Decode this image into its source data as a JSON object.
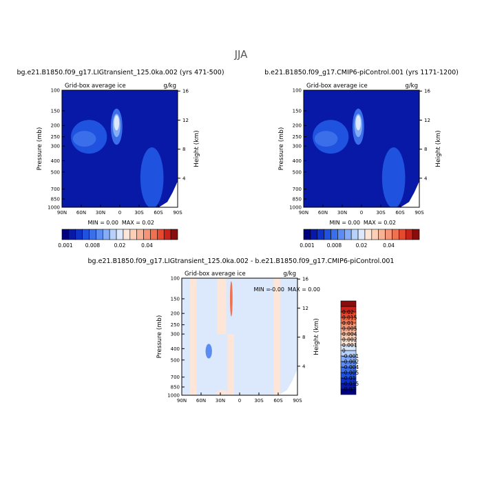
{
  "figure": {
    "title": "JJA"
  },
  "chart_data": [
    {
      "type": "heatmap",
      "title": "bg.e21.B1850.f09_g17.LIGtransient_125.0ka.002 (yrs 471-500)",
      "subtitle_left": "Grid-box average ice",
      "subtitle_right": "g/kg",
      "ylabel": "Pressure (mb)",
      "ylabel_right": "Height (km)",
      "x_ticks": [
        "90N",
        "60N",
        "30N",
        "0",
        "30S",
        "60S",
        "90S"
      ],
      "y_ticks": [
        "100",
        "150",
        "200",
        "250",
        "300",
        "400",
        "500",
        "700",
        "850",
        "1000"
      ],
      "y_right_ticks": [
        "16",
        "12",
        "8",
        "4"
      ],
      "y_right_values": [
        16,
        12,
        8,
        4
      ],
      "x_range": [
        90,
        -90
      ],
      "y_range": [
        1000,
        100
      ],
      "stats": {
        "min_label": "MIN =",
        "min": "0.00",
        "max_label": "MAX =",
        "max": "0.02"
      },
      "colorbar": {
        "orientation": "horizontal",
        "colors": [
          "#00007f",
          "#0819a8",
          "#0e32c8",
          "#1e52df",
          "#3b6fea",
          "#5c8cf2",
          "#84acf7",
          "#b8d1fb",
          "#dce9fd",
          "#fde6d8",
          "#fbd0b6",
          "#f8b396",
          "#f39576",
          "#ee7150",
          "#e54a2e",
          "#c8231b",
          "#8a0d0d"
        ],
        "labels": [
          "0.001",
          "0.008",
          "0.02",
          "0.04"
        ],
        "label_positions": [
          0,
          4,
          8,
          12
        ]
      },
      "features": [
        {
          "kind": "blob",
          "lat": 48,
          "p": 250,
          "rx": 28,
          "rp": 80,
          "color": "#1e52df"
        },
        {
          "kind": "blob",
          "lat": 55,
          "p": 260,
          "rx": 18,
          "rp": 40,
          "color": "#3b6fea"
        },
        {
          "kind": "blob",
          "lat": 5,
          "p": 205,
          "rx": 9,
          "rp": 70,
          "color": "#3b6fea"
        },
        {
          "kind": "blob",
          "lat": 5,
          "p": 200,
          "rx": 6,
          "rp": 45,
          "color": "#84acf7"
        },
        {
          "kind": "blob",
          "lat": 5,
          "p": 190,
          "rx": 4,
          "rp": 28,
          "color": "#dce9fd"
        },
        {
          "kind": "blob",
          "lat": -50,
          "p": 560,
          "rx": 18,
          "rp": 300,
          "color": "#1e52df"
        }
      ]
    },
    {
      "type": "heatmap",
      "title": "b.e21.B1850.f09_g17.CMIP6-piControl.001 (yrs 1171-1200)",
      "subtitle_left": "Grid-box average ice",
      "subtitle_right": "g/kg",
      "ylabel": "Pressure (mb)",
      "ylabel_right": "Height (km)",
      "x_ticks": [
        "90N",
        "60N",
        "30N",
        "0",
        "30S",
        "60S",
        "90S"
      ],
      "y_ticks": [
        "100",
        "150",
        "200",
        "250",
        "300",
        "400",
        "500",
        "700",
        "850",
        "1000"
      ],
      "y_right_ticks": [
        "16",
        "12",
        "8",
        "4"
      ],
      "y_right_values": [
        16,
        12,
        8,
        4
      ],
      "x_range": [
        90,
        -90
      ],
      "y_range": [
        1000,
        100
      ],
      "stats": {
        "min_label": "MIN =",
        "min": "0.00",
        "max_label": "MAX =",
        "max": "0.02"
      },
      "colorbar": {
        "orientation": "horizontal",
        "colors": [
          "#00007f",
          "#0819a8",
          "#0e32c8",
          "#1e52df",
          "#3b6fea",
          "#5c8cf2",
          "#84acf7",
          "#b8d1fb",
          "#dce9fd",
          "#fde6d8",
          "#fbd0b6",
          "#f8b396",
          "#f39576",
          "#ee7150",
          "#e54a2e",
          "#c8231b",
          "#8a0d0d"
        ],
        "labels": [
          "0.001",
          "0.008",
          "0.02",
          "0.04"
        ],
        "label_positions": [
          0,
          4,
          8,
          12
        ]
      },
      "features": [
        {
          "kind": "blob",
          "lat": 48,
          "p": 250,
          "rx": 28,
          "rp": 80,
          "color": "#1e52df"
        },
        {
          "kind": "blob",
          "lat": 55,
          "p": 260,
          "rx": 18,
          "rp": 40,
          "color": "#3b6fea"
        },
        {
          "kind": "blob",
          "lat": 5,
          "p": 205,
          "rx": 9,
          "rp": 70,
          "color": "#3b6fea"
        },
        {
          "kind": "blob",
          "lat": 5,
          "p": 200,
          "rx": 6,
          "rp": 45,
          "color": "#84acf7"
        },
        {
          "kind": "blob",
          "lat": 5,
          "p": 190,
          "rx": 4,
          "rp": 28,
          "color": "#dce9fd"
        },
        {
          "kind": "blob",
          "lat": -50,
          "p": 560,
          "rx": 18,
          "rp": 300,
          "color": "#1e52df"
        }
      ]
    },
    {
      "type": "heatmap",
      "title": "bg.e21.B1850.f09_g17.LIGtransient_125.0ka.002 - b.e21.B1850.f09_g17.CMIP6-piControl.001",
      "subtitle_left": "Grid-box average ice",
      "subtitle_right": "g/kg",
      "ylabel": "Pressure (mb)",
      "ylabel_right": "Height (km)",
      "x_ticks": [
        "90N",
        "60N",
        "30N",
        "0",
        "30S",
        "60S",
        "90S"
      ],
      "y_ticks": [
        "100",
        "150",
        "200",
        "250",
        "300",
        "400",
        "500",
        "700",
        "850",
        "1000"
      ],
      "y_right_ticks": [
        "16",
        "12",
        "8",
        "4"
      ],
      "y_right_values": [
        16,
        12,
        8,
        4
      ],
      "x_range": [
        90,
        -90
      ],
      "y_range": [
        1000,
        100
      ],
      "stats": {
        "min_label": "MIN =",
        "min": "-0.00",
        "max_label": "MAX =",
        "max": "0.00"
      },
      "colorbar": {
        "orientation": "vertical",
        "colors": [
          "#00007f",
          "#0819a8",
          "#0e32c8",
          "#1e52df",
          "#3b6fea",
          "#5c8cf2",
          "#84acf7",
          "#b8d1fb",
          "#dce9fd",
          "#fde6d8",
          "#fbd0b6",
          "#f8b396",
          "#f39576",
          "#ee7150",
          "#e54a2e",
          "#c8231b",
          "#8a0d0d"
        ],
        "labels": [
          "-0.02",
          "-0.015",
          "-0.01",
          "-0.005",
          "-0.004",
          "-0.002",
          "-0.001",
          "0",
          "0.001",
          "0.002",
          "0.004",
          "0.005",
          "0.01",
          "0.015",
          "0.02"
        ]
      },
      "background_color": "#dce9fd",
      "features": [
        {
          "kind": "band",
          "lat": 72,
          "width": 10,
          "p_top": 100,
          "p_bottom": 1000,
          "color": "#fde6d8"
        },
        {
          "kind": "band",
          "lat": 28,
          "width": 14,
          "p_top": 100,
          "p_bottom": 300,
          "color": "#fde6d8"
        },
        {
          "kind": "band",
          "lat": 14,
          "width": 10,
          "p_top": 300,
          "p_bottom": 1000,
          "color": "#fde6d8"
        },
        {
          "kind": "band",
          "lat": -58,
          "width": 10,
          "p_top": 100,
          "p_bottom": 1000,
          "color": "#fde6d8"
        },
        {
          "kind": "blob",
          "lat": 48,
          "p": 420,
          "rx": 5,
          "rp": 60,
          "color": "#5c8cf2"
        },
        {
          "kind": "blob",
          "lat": 13,
          "p": 150,
          "rx": 2,
          "rp": 50,
          "color": "#ee7150"
        },
        {
          "kind": "blob",
          "lat": 28,
          "p": 950,
          "rx": 8,
          "rp": 50,
          "color": "#fde6d8"
        }
      ]
    }
  ]
}
